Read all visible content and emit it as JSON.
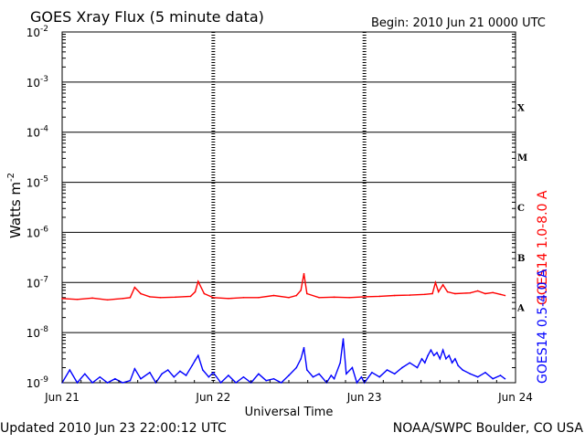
{
  "header": {
    "title": "GOES Xray Flux (5 minute data)",
    "begin": "Begin:  2010 Jun 21 0000 UTC"
  },
  "footer": {
    "updated": "Updated 2010 Jun 23 22:00:12 UTC",
    "credit": "NOAA/SWPC Boulder, CO USA"
  },
  "colors": {
    "long_channel": "#ff0000",
    "short_channel": "#0000ff",
    "frame": "#000000"
  },
  "chart_data": {
    "type": "line",
    "title": "GOES Xray Flux (5 minute data)",
    "xlabel": "Universal Time",
    "ylabel_base": "Watts m",
    "ylabel_exp": "-2",
    "yscale": "log",
    "ylim": [
      1e-09,
      0.01
    ],
    "x_days": [
      0,
      3
    ],
    "grid": "horizontal decades + dashed day separators",
    "x_tick_labels": [
      "Jun 21",
      "Jun 22",
      "Jun 23",
      "Jun 24"
    ],
    "y_tick_labels": [
      {
        "base": "10",
        "exp": "-9"
      },
      {
        "base": "10",
        "exp": "-8"
      },
      {
        "base": "10",
        "exp": "-7"
      },
      {
        "base": "10",
        "exp": "-6"
      },
      {
        "base": "10",
        "exp": "-5"
      },
      {
        "base": "10",
        "exp": "-4"
      },
      {
        "base": "10",
        "exp": "-3"
      },
      {
        "base": "10",
        "exp": "-2"
      }
    ],
    "flare_classes": [
      {
        "label": "A",
        "log": -7.5
      },
      {
        "label": "B",
        "log": -6.5
      },
      {
        "label": "C",
        "log": -5.5
      },
      {
        "label": "M",
        "log": -4.5
      },
      {
        "label": "X",
        "log": -3.5
      }
    ],
    "series": [
      {
        "name": "GOES14 1.0-8.0 A",
        "color": "#ff0000",
        "points": [
          [
            0.0,
            4.8e-08
          ],
          [
            0.1,
            4.6e-08
          ],
          [
            0.2,
            4.9e-08
          ],
          [
            0.3,
            4.5e-08
          ],
          [
            0.4,
            4.8e-08
          ],
          [
            0.45,
            5e-08
          ],
          [
            0.48,
            8e-08
          ],
          [
            0.52,
            6e-08
          ],
          [
            0.58,
            5.2e-08
          ],
          [
            0.65,
            5e-08
          ],
          [
            0.75,
            5.1e-08
          ],
          [
            0.85,
            5.3e-08
          ],
          [
            0.88,
            6.5e-08
          ],
          [
            0.9,
            1.05e-07
          ],
          [
            0.94,
            6e-08
          ],
          [
            1.0,
            5e-08
          ],
          [
            1.1,
            4.8e-08
          ],
          [
            1.2,
            5e-08
          ],
          [
            1.3,
            5e-08
          ],
          [
            1.4,
            5.5e-08
          ],
          [
            1.5,
            5e-08
          ],
          [
            1.55,
            5.5e-08
          ],
          [
            1.58,
            7e-08
          ],
          [
            1.6,
            1.5e-07
          ],
          [
            1.62,
            6e-08
          ],
          [
            1.7,
            5e-08
          ],
          [
            1.8,
            5.1e-08
          ],
          [
            1.9,
            5e-08
          ],
          [
            2.0,
            5.2e-08
          ],
          [
            2.1,
            5.3e-08
          ],
          [
            2.2,
            5.5e-08
          ],
          [
            2.3,
            5.6e-08
          ],
          [
            2.4,
            5.8e-08
          ],
          [
            2.45,
            6e-08
          ],
          [
            2.47,
            1e-07
          ],
          [
            2.49,
            6.5e-08
          ],
          [
            2.52,
            9e-08
          ],
          [
            2.55,
            6.5e-08
          ],
          [
            2.6,
            6e-08
          ],
          [
            2.7,
            6.2e-08
          ],
          [
            2.75,
            6.8e-08
          ],
          [
            2.8,
            6e-08
          ],
          [
            2.85,
            6.3e-08
          ],
          [
            2.9,
            5.8e-08
          ],
          [
            2.93,
            5.5e-08
          ]
        ]
      },
      {
        "name": "GOES14 0.5-4.0 A",
        "color": "#0000ff",
        "points": [
          [
            0.0,
            1e-09
          ],
          [
            0.05,
            1.8e-09
          ],
          [
            0.1,
            1e-09
          ],
          [
            0.15,
            1.5e-09
          ],
          [
            0.2,
            1e-09
          ],
          [
            0.25,
            1.3e-09
          ],
          [
            0.3,
            1e-09
          ],
          [
            0.35,
            1.2e-09
          ],
          [
            0.4,
            1e-09
          ],
          [
            0.45,
            1.1e-09
          ],
          [
            0.48,
            1.9e-09
          ],
          [
            0.52,
            1.2e-09
          ],
          [
            0.58,
            1.6e-09
          ],
          [
            0.62,
            1e-09
          ],
          [
            0.66,
            1.5e-09
          ],
          [
            0.7,
            1.8e-09
          ],
          [
            0.74,
            1.3e-09
          ],
          [
            0.78,
            1.7e-09
          ],
          [
            0.82,
            1.4e-09
          ],
          [
            0.86,
            2.2e-09
          ],
          [
            0.88,
            2.8e-09
          ],
          [
            0.9,
            3.5e-09
          ],
          [
            0.93,
            1.8e-09
          ],
          [
            0.97,
            1.3e-09
          ],
          [
            1.0,
            1.6e-09
          ],
          [
            1.05,
            1e-09
          ],
          [
            1.1,
            1.4e-09
          ],
          [
            1.15,
            1e-09
          ],
          [
            1.2,
            1.3e-09
          ],
          [
            1.25,
            1e-09
          ],
          [
            1.3,
            1.5e-09
          ],
          [
            1.35,
            1.1e-09
          ],
          [
            1.4,
            1.2e-09
          ],
          [
            1.45,
            1e-09
          ],
          [
            1.5,
            1.4e-09
          ],
          [
            1.55,
            2e-09
          ],
          [
            1.58,
            3e-09
          ],
          [
            1.6,
            5e-09
          ],
          [
            1.62,
            1.8e-09
          ],
          [
            1.66,
            1.3e-09
          ],
          [
            1.7,
            1.5e-09
          ],
          [
            1.75,
            1e-09
          ],
          [
            1.78,
            1.4e-09
          ],
          [
            1.8,
            1.2e-09
          ],
          [
            1.84,
            2.5e-09
          ],
          [
            1.86,
            7.5e-09
          ],
          [
            1.88,
            1.5e-09
          ],
          [
            1.92,
            2e-09
          ],
          [
            1.95,
            1e-09
          ],
          [
            1.98,
            1.3e-09
          ],
          [
            2.0,
            1e-09
          ],
          [
            2.05,
            1.6e-09
          ],
          [
            2.1,
            1.3e-09
          ],
          [
            2.15,
            1.8e-09
          ],
          [
            2.2,
            1.5e-09
          ],
          [
            2.25,
            2e-09
          ],
          [
            2.3,
            2.5e-09
          ],
          [
            2.35,
            2e-09
          ],
          [
            2.38,
            3e-09
          ],
          [
            2.4,
            2.5e-09
          ],
          [
            2.42,
            3.5e-09
          ],
          [
            2.44,
            4.5e-09
          ],
          [
            2.46,
            3.5e-09
          ],
          [
            2.48,
            4e-09
          ],
          [
            2.5,
            3e-09
          ],
          [
            2.52,
            4.5e-09
          ],
          [
            2.54,
            3e-09
          ],
          [
            2.56,
            3.5e-09
          ],
          [
            2.58,
            2.5e-09
          ],
          [
            2.6,
            3e-09
          ],
          [
            2.62,
            2.2e-09
          ],
          [
            2.65,
            1.8e-09
          ],
          [
            2.7,
            1.5e-09
          ],
          [
            2.75,
            1.3e-09
          ],
          [
            2.8,
            1.6e-09
          ],
          [
            2.85,
            1.2e-09
          ],
          [
            2.9,
            1.4e-09
          ],
          [
            2.93,
            1.2e-09
          ]
        ]
      }
    ]
  }
}
